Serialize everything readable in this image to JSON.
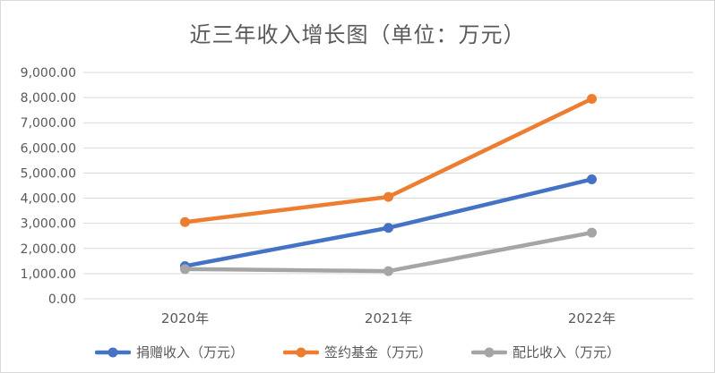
{
  "chart_data": {
    "type": "line",
    "title": "近三年收入增长图（单位：万元）",
    "categories": [
      "2020年",
      "2021年",
      "2022年"
    ],
    "series": [
      {
        "name": "捐赠收入（万元）",
        "values": [
          1300,
          2820,
          4750
        ],
        "color": "#4472c4"
      },
      {
        "name": "签约基金（万元）",
        "values": [
          3050,
          4050,
          7950
        ],
        "color": "#ed7d31"
      },
      {
        "name": "配比收入（万元）",
        "values": [
          1180,
          1100,
          2630
        ],
        "color": "#a5a5a5"
      }
    ],
    "ylim": [
      0,
      9000
    ],
    "ytick_step": 1000,
    "ytick_labels": [
      "0.00",
      "1,000.00",
      "2,000.00",
      "3,000.00",
      "4,000.00",
      "5,000.00",
      "6,000.00",
      "7,000.00",
      "8,000.00",
      "9,000.00"
    ],
    "grid": true,
    "legend": "bottom"
  }
}
